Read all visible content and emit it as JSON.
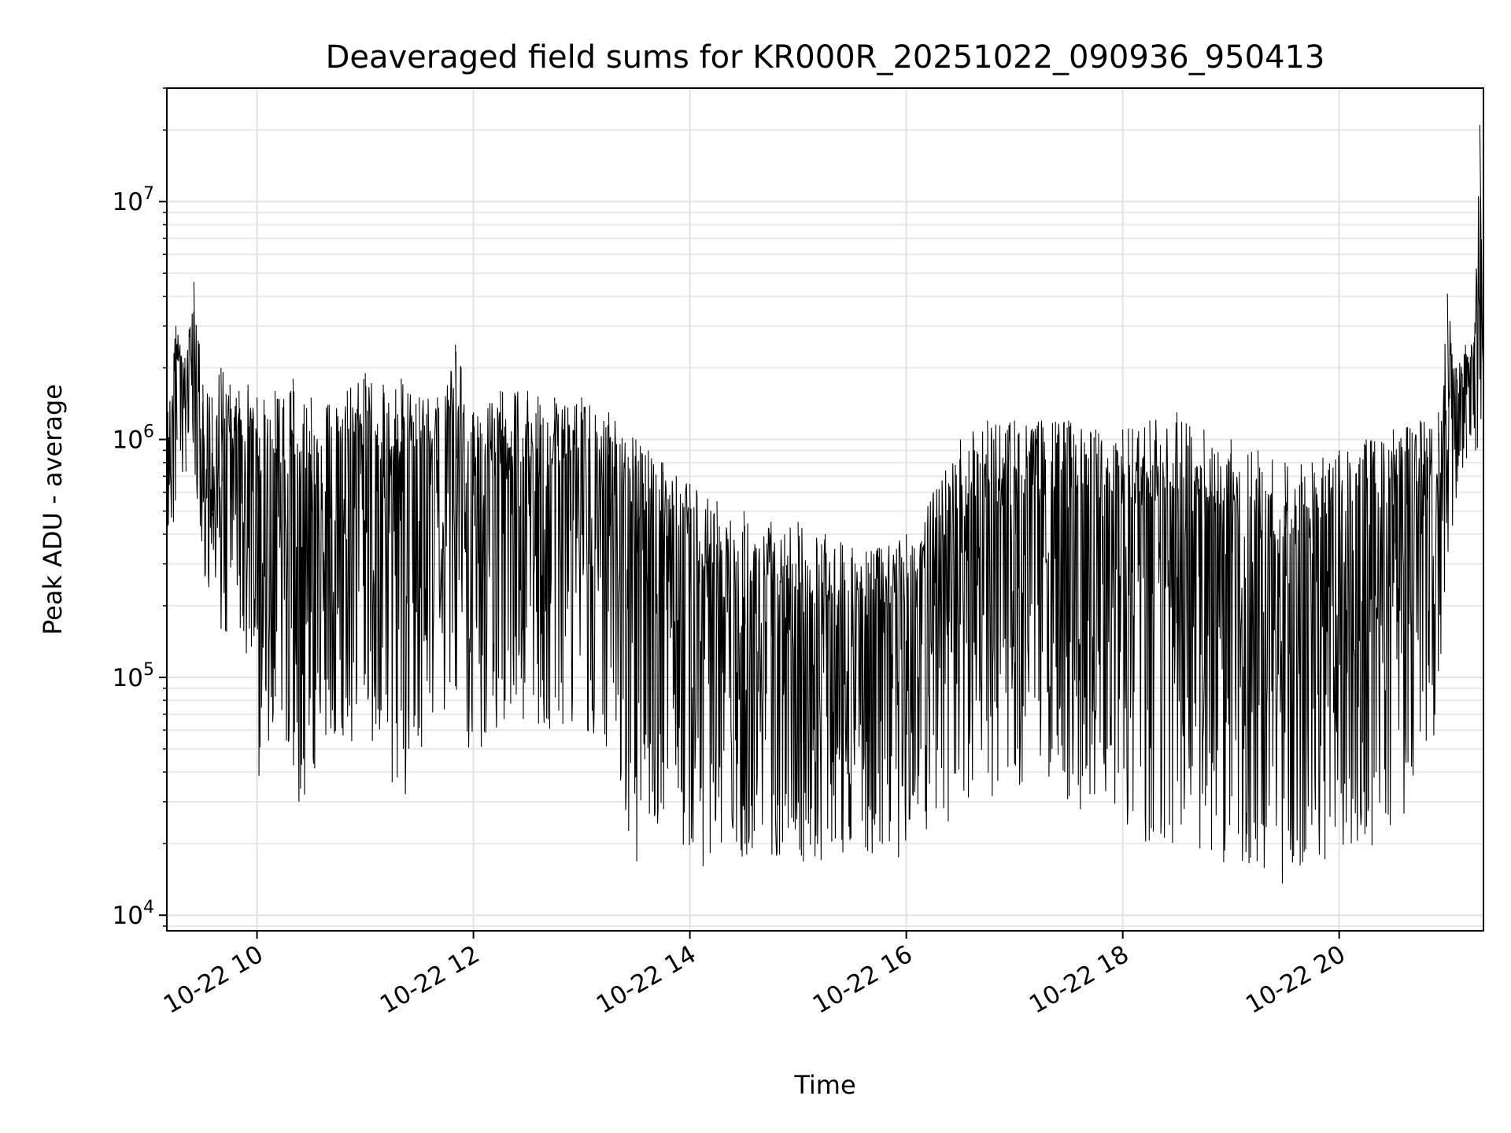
{
  "chart_data": {
    "type": "line",
    "title": "Deaveraged field sums for KR000R_20251022_090936_950413",
    "xlabel": "Time",
    "ylabel": "Peak ADU - average",
    "yscale": "log",
    "ylim": [
      8600,
      30000000
    ],
    "xlim": [
      "2025-10-22 09:10",
      "2025-10-22 21:20"
    ],
    "grid": true,
    "legend": "none",
    "line_color": "#000000",
    "x_ticks": [
      {
        "time": "2025-10-22 10:00",
        "label": "10-22 10"
      },
      {
        "time": "2025-10-22 12:00",
        "label": "10-22 12"
      },
      {
        "time": "2025-10-22 14:00",
        "label": "10-22 14"
      },
      {
        "time": "2025-10-22 16:00",
        "label": "10-22 16"
      },
      {
        "time": "2025-10-22 18:00",
        "label": "10-22 18"
      },
      {
        "time": "2025-10-22 20:00",
        "label": "10-22 20"
      }
    ],
    "y_ticks": [
      {
        "value": 10000,
        "base": "10",
        "exp": "4"
      },
      {
        "value": 100000,
        "base": "10",
        "exp": "5"
      },
      {
        "value": 1000000,
        "base": "10",
        "exp": "6"
      },
      {
        "value": 10000000,
        "base": "10",
        "exp": "7"
      }
    ],
    "series": [
      {
        "x": [
          "2025-10-22 09:10",
          "2025-10-22 09:15",
          "2025-10-22 09:20",
          "2025-10-22 09:25",
          "2025-10-22 09:30",
          "2025-10-22 09:35",
          "2025-10-22 09:40",
          "2025-10-22 09:45",
          "2025-10-22 09:50",
          "2025-10-22 09:55",
          "2025-10-22 10:00",
          "2025-10-22 10:10",
          "2025-10-22 10:20",
          "2025-10-22 10:30",
          "2025-10-22 10:40",
          "2025-10-22 10:50",
          "2025-10-22 11:00",
          "2025-10-22 11:10",
          "2025-10-22 11:20",
          "2025-10-22 11:30",
          "2025-10-22 11:40",
          "2025-10-22 11:50",
          "2025-10-22 12:00",
          "2025-10-22 12:15",
          "2025-10-22 12:30",
          "2025-10-22 12:45",
          "2025-10-22 13:00",
          "2025-10-22 13:15",
          "2025-10-22 13:30",
          "2025-10-22 13:45",
          "2025-10-22 14:00",
          "2025-10-22 14:15",
          "2025-10-22 14:30",
          "2025-10-22 14:45",
          "2025-10-22 15:00",
          "2025-10-22 15:15",
          "2025-10-22 15:30",
          "2025-10-22 15:45",
          "2025-10-22 16:00",
          "2025-10-22 16:15",
          "2025-10-22 16:30",
          "2025-10-22 16:45",
          "2025-10-22 17:00",
          "2025-10-22 17:15",
          "2025-10-22 17:30",
          "2025-10-22 17:45",
          "2025-10-22 18:00",
          "2025-10-22 18:15",
          "2025-10-22 18:30",
          "2025-10-22 18:45",
          "2025-10-22 19:00",
          "2025-10-22 19:15",
          "2025-10-22 19:30",
          "2025-10-22 19:45",
          "2025-10-22 20:00",
          "2025-10-22 20:15",
          "2025-10-22 20:30",
          "2025-10-22 20:45",
          "2025-10-22 20:55",
          "2025-10-22 21:00",
          "2025-10-22 21:05",
          "2025-10-22 21:10",
          "2025-10-22 21:15",
          "2025-10-22 21:18",
          "2025-10-22 21:20"
        ],
        "upper": [
          1300000,
          3000000,
          2200000,
          4600000,
          1700000,
          1500000,
          2000000,
          1700000,
          1600000,
          1700000,
          1500000,
          1600000,
          1800000,
          1500000,
          1400000,
          1600000,
          1900000,
          1700000,
          1800000,
          1500000,
          1500000,
          2500000,
          1300000,
          1600000,
          1600000,
          1500000,
          1500000,
          1300000,
          1000000,
          800000,
          650000,
          550000,
          500000,
          450000,
          450000,
          400000,
          350000,
          350000,
          400000,
          600000,
          1000000,
          1200000,
          1200000,
          1200000,
          1200000,
          1100000,
          1100000,
          1200000,
          1300000,
          1100000,
          1000000,
          900000,
          800000,
          800000,
          900000,
          1000000,
          1100000,
          1200000,
          1300000,
          4100000,
          2000000,
          2500000,
          2700000,
          21000000,
          2000000
        ],
        "lower": [
          330000,
          500000,
          800000,
          800000,
          120000,
          300000,
          130000,
          110000,
          140000,
          120000,
          30000,
          45000,
          28000,
          32000,
          60000,
          50000,
          60000,
          45000,
          25000,
          45000,
          70000,
          45000,
          42000,
          50000,
          60000,
          50000,
          60000,
          50000,
          16000,
          25000,
          17000,
          13000,
          17000,
          18000,
          16000,
          16000,
          17000,
          17000,
          17000,
          22000,
          25000,
          30000,
          35000,
          35000,
          30000,
          25000,
          20000,
          20000,
          20000,
          18000,
          16000,
          16000,
          13000,
          17000,
          17000,
          18000,
          20000,
          40000,
          60000,
          290000,
          500000,
          900000,
          1000000,
          700000,
          380000
        ]
      }
    ]
  }
}
